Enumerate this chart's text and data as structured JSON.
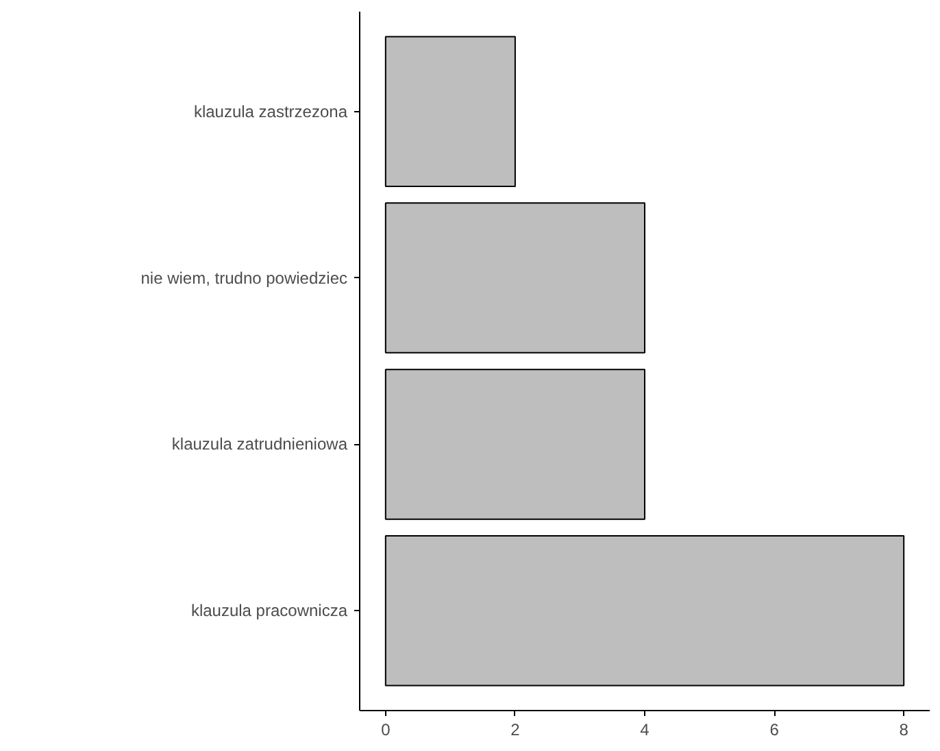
{
  "chart_data": {
    "type": "bar",
    "orientation": "horizontal",
    "categories": [
      "klauzula zastrzezona",
      "nie wiem, trudno powiedziec",
      "klauzula zatrudnieniowa",
      "klauzula pracownicza"
    ],
    "values": [
      2,
      4,
      4,
      8
    ],
    "color": "#bebebe",
    "xlim": [
      -0.4,
      8.4
    ],
    "xticks": [
      0,
      2,
      4,
      6,
      8
    ],
    "grid": false
  }
}
